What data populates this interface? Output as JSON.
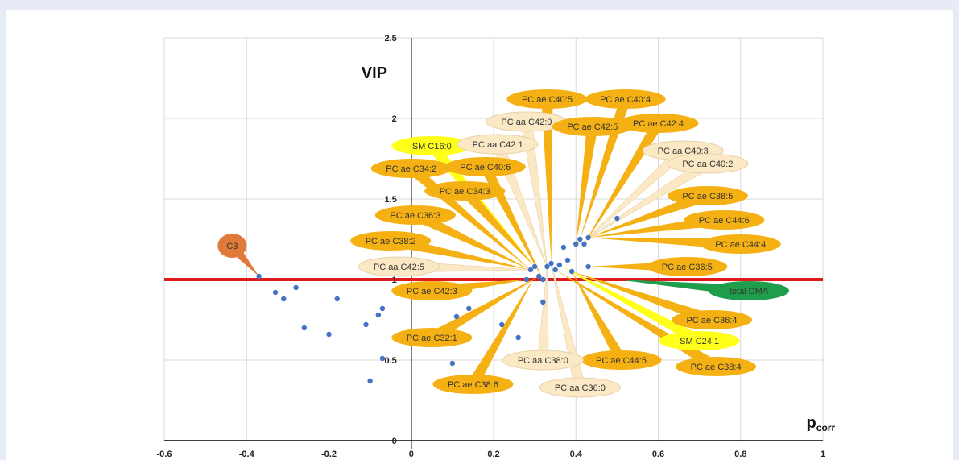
{
  "colors": {
    "page_bg": "#e6ebf5",
    "point": "#4472c4",
    "threshold_line": "#e01a1a",
    "grid": "#d9d9d9",
    "callout_orange": "#f5b113",
    "callout_light": "#fbe8c4",
    "callout_yellow": "#ffff1a",
    "callout_green": "#1e9e4a",
    "callout_dark_orange": "#e07a3a"
  },
  "chart_data": {
    "type": "scatter",
    "xlabel": "p",
    "xlabel_sub": "corr",
    "ylabel": "VIP",
    "xlim": [
      -0.6,
      1.0
    ],
    "ylim": [
      0,
      2.5
    ],
    "x_ticks": [
      "-0.6",
      "-0.4",
      "-0.2",
      "0",
      "0.2",
      "0.4",
      "0.6",
      "0.8",
      "1"
    ],
    "y_ticks": [
      "0",
      "0.5",
      "1",
      "1.5",
      "2",
      "2.5"
    ],
    "grid": true,
    "threshold_y": 1.0,
    "points": [
      {
        "x": -0.37,
        "y": 1.02
      },
      {
        "x": -0.33,
        "y": 0.92
      },
      {
        "x": -0.31,
        "y": 0.88
      },
      {
        "x": -0.28,
        "y": 0.95
      },
      {
        "x": -0.26,
        "y": 0.7
      },
      {
        "x": -0.2,
        "y": 0.66
      },
      {
        "x": -0.18,
        "y": 0.88
      },
      {
        "x": -0.11,
        "y": 0.72
      },
      {
        "x": -0.1,
        "y": 0.37
      },
      {
        "x": -0.08,
        "y": 0.78
      },
      {
        "x": -0.07,
        "y": 0.82
      },
      {
        "x": -0.07,
        "y": 0.51
      },
      {
        "x": 0.1,
        "y": 0.48
      },
      {
        "x": 0.11,
        "y": 0.77
      },
      {
        "x": 0.14,
        "y": 0.82
      },
      {
        "x": 0.22,
        "y": 0.72
      },
      {
        "x": 0.26,
        "y": 0.64
      },
      {
        "x": 0.28,
        "y": 1.0
      },
      {
        "x": 0.29,
        "y": 1.06
      },
      {
        "x": 0.3,
        "y": 1.08
      },
      {
        "x": 0.31,
        "y": 1.02
      },
      {
        "x": 0.32,
        "y": 0.86
      },
      {
        "x": 0.32,
        "y": 1.0
      },
      {
        "x": 0.33,
        "y": 1.08
      },
      {
        "x": 0.34,
        "y": 1.1
      },
      {
        "x": 0.35,
        "y": 1.06
      },
      {
        "x": 0.36,
        "y": 1.09
      },
      {
        "x": 0.37,
        "y": 1.2
      },
      {
        "x": 0.38,
        "y": 1.12
      },
      {
        "x": 0.39,
        "y": 1.05
      },
      {
        "x": 0.4,
        "y": 1.22
      },
      {
        "x": 0.41,
        "y": 1.25
      },
      {
        "x": 0.42,
        "y": 1.22
      },
      {
        "x": 0.43,
        "y": 1.26
      },
      {
        "x": 0.43,
        "y": 1.08
      },
      {
        "x": 0.5,
        "y": 1.38
      }
    ],
    "labels": [
      {
        "text": "C3",
        "x": -0.435,
        "y": 1.21,
        "color": "dark_orange",
        "anchor_x": -0.37,
        "anchor_y": 1.02
      },
      {
        "text": "PC ae C40:5",
        "x": 0.33,
        "y": 2.12,
        "color": "orange",
        "anchor_x": 0.34,
        "anchor_y": 1.1
      },
      {
        "text": "PC ae C40:4",
        "x": 0.52,
        "y": 2.12,
        "color": "orange",
        "anchor_x": 0.41,
        "anchor_y": 1.25
      },
      {
        "text": "PC aa C42:0",
        "x": 0.28,
        "y": 1.98,
        "color": "light",
        "anchor_x": 0.33,
        "anchor_y": 1.08
      },
      {
        "text": "PC ae C42:5",
        "x": 0.44,
        "y": 1.95,
        "color": "orange",
        "anchor_x": 0.4,
        "anchor_y": 1.22
      },
      {
        "text": "PC ae C42:4",
        "x": 0.6,
        "y": 1.97,
        "color": "orange",
        "anchor_x": 0.42,
        "anchor_y": 1.22
      },
      {
        "text": "SM C16:0",
        "x": 0.05,
        "y": 1.83,
        "color": "yellow",
        "anchor_x": 0.3,
        "anchor_y": 1.08
      },
      {
        "text": "PC aa C42:1",
        "x": 0.21,
        "y": 1.84,
        "color": "light",
        "anchor_x": 0.33,
        "anchor_y": 1.08
      },
      {
        "text": "PC aa C40:3",
        "x": 0.66,
        "y": 1.8,
        "color": "light",
        "anchor_x": 0.43,
        "anchor_y": 1.26
      },
      {
        "text": "PC ae C34:2",
        "x": 0.0,
        "y": 1.69,
        "color": "orange",
        "anchor_x": 0.29,
        "anchor_y": 1.06
      },
      {
        "text": "PC ae C40:6",
        "x": 0.18,
        "y": 1.7,
        "color": "orange",
        "anchor_x": 0.32,
        "anchor_y": 1.0
      },
      {
        "text": "PC aa C40:2",
        "x": 0.72,
        "y": 1.72,
        "color": "light",
        "anchor_x": 0.43,
        "anchor_y": 1.26
      },
      {
        "text": "PC ae C34:3",
        "x": 0.13,
        "y": 1.55,
        "color": "orange",
        "anchor_x": 0.3,
        "anchor_y": 1.08
      },
      {
        "text": "PC ae C38:5",
        "x": 0.72,
        "y": 1.52,
        "color": "orange",
        "anchor_x": 0.43,
        "anchor_y": 1.26
      },
      {
        "text": "PC ae C36:3",
        "x": 0.01,
        "y": 1.4,
        "color": "orange",
        "anchor_x": 0.29,
        "anchor_y": 1.06
      },
      {
        "text": "PC ae C44:6",
        "x": 0.76,
        "y": 1.37,
        "color": "orange",
        "anchor_x": 0.43,
        "anchor_y": 1.26
      },
      {
        "text": "PC ae C38:2",
        "x": -0.05,
        "y": 1.24,
        "color": "orange",
        "anchor_x": 0.29,
        "anchor_y": 1.06
      },
      {
        "text": "PC ae C44:4",
        "x": 0.8,
        "y": 1.22,
        "color": "orange",
        "anchor_x": 0.43,
        "anchor_y": 1.26
      },
      {
        "text": "PC aa C42:5",
        "x": -0.03,
        "y": 1.08,
        "color": "light",
        "anchor_x": 0.29,
        "anchor_y": 1.06
      },
      {
        "text": "PC ae C36:5",
        "x": 0.67,
        "y": 1.08,
        "color": "orange",
        "anchor_x": 0.43,
        "anchor_y": 1.08
      },
      {
        "text": "total DMA",
        "x": 0.82,
        "y": 0.93,
        "color": "green",
        "anchor_x": 0.5,
        "anchor_y": 1.0
      },
      {
        "text": "PC ae C42:3",
        "x": 0.05,
        "y": 0.93,
        "color": "orange",
        "anchor_x": 0.28,
        "anchor_y": 1.0
      },
      {
        "text": "PC ae C36:4",
        "x": 0.73,
        "y": 0.75,
        "color": "orange",
        "anchor_x": 0.39,
        "anchor_y": 1.05
      },
      {
        "text": "SM C24:1",
        "x": 0.7,
        "y": 0.62,
        "color": "yellow",
        "anchor_x": 0.36,
        "anchor_y": 1.09
      },
      {
        "text": "PC ae C32:1",
        "x": 0.05,
        "y": 0.64,
        "color": "orange",
        "anchor_x": 0.31,
        "anchor_y": 1.02
      },
      {
        "text": "PC ae C44:5",
        "x": 0.51,
        "y": 0.5,
        "color": "orange",
        "anchor_x": 0.39,
        "anchor_y": 1.05
      },
      {
        "text": "PC ae C38:4",
        "x": 0.74,
        "y": 0.46,
        "color": "orange",
        "anchor_x": 0.35,
        "anchor_y": 1.06
      },
      {
        "text": "PC aa C38:0",
        "x": 0.32,
        "y": 0.5,
        "color": "light",
        "anchor_x": 0.33,
        "anchor_y": 1.08
      },
      {
        "text": "PC ae C38:6",
        "x": 0.15,
        "y": 0.35,
        "color": "orange",
        "anchor_x": 0.3,
        "anchor_y": 1.02
      },
      {
        "text": "PC aa C36:0",
        "x": 0.41,
        "y": 0.33,
        "color": "light",
        "anchor_x": 0.34,
        "anchor_y": 1.1
      }
    ]
  }
}
